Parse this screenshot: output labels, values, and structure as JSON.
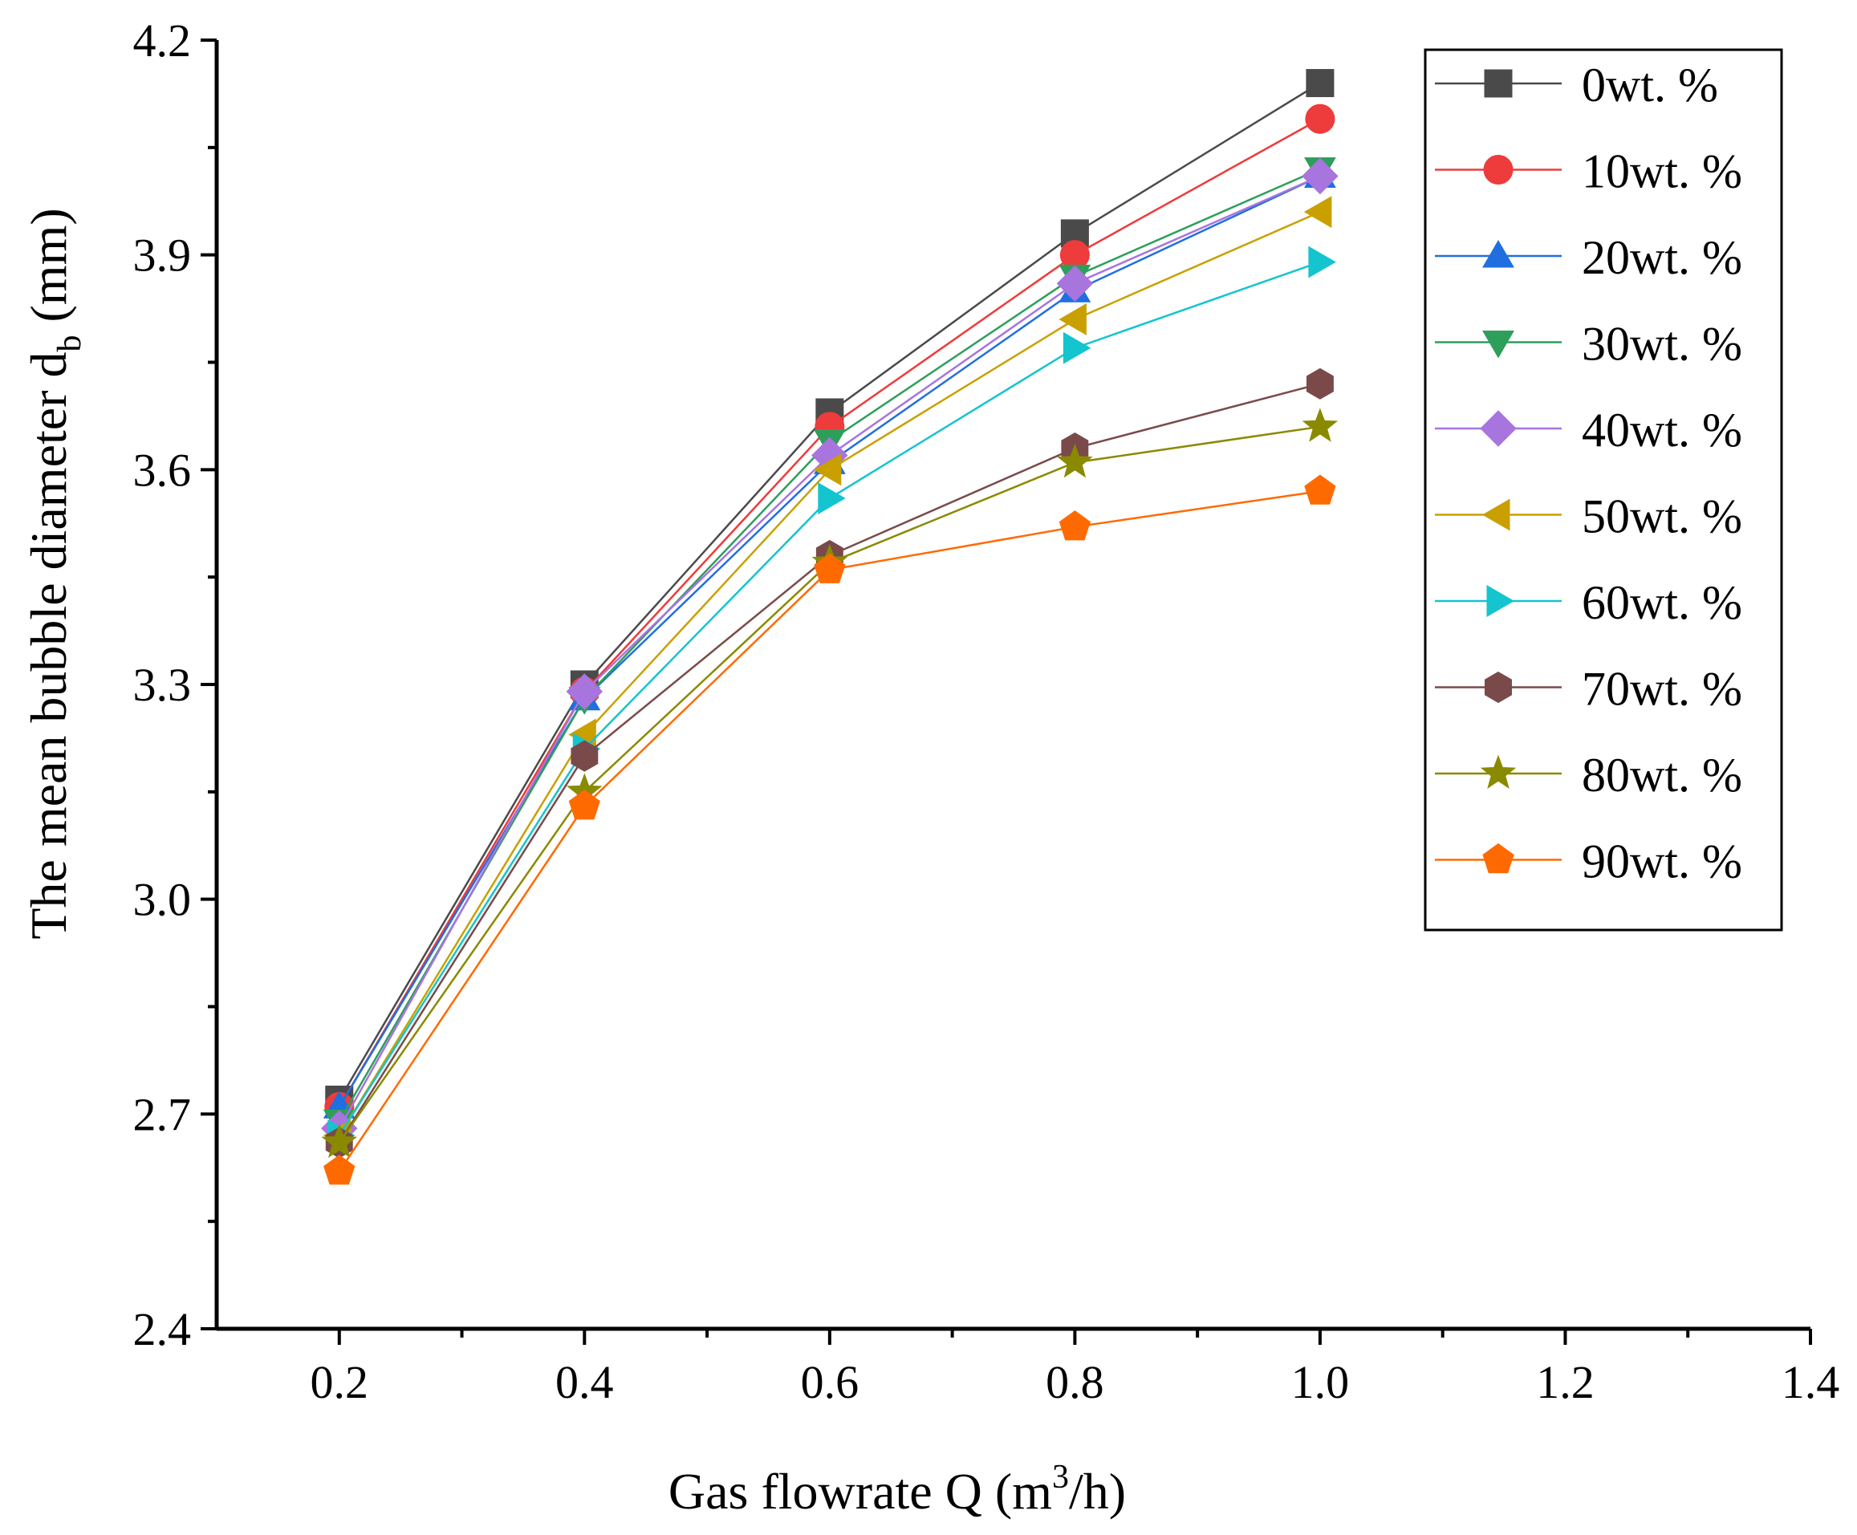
{
  "chart_data": {
    "type": "line",
    "title": "",
    "xlabel": "Gas flowrate Q (m",
    "xlabel_sup": "3",
    "xlabel_tail": "/h)",
    "ylabel": "The mean bubble diameter d",
    "ylabel_sub": "b",
    "ylabel_tail": " (mm)",
    "xlim": [
      0.1,
      1.4
    ],
    "ylim": [
      2.4,
      4.2
    ],
    "xticks": [
      {
        "value": 0.2,
        "label": "0.2"
      },
      {
        "value": 0.4,
        "label": "0.4"
      },
      {
        "value": 0.6,
        "label": "0.6"
      },
      {
        "value": 0.8,
        "label": "0.8"
      },
      {
        "value": 1.0,
        "label": "1.0"
      },
      {
        "value": 1.2,
        "label": "1.2"
      },
      {
        "value": 1.4,
        "label": "1.4"
      }
    ],
    "yticks": [
      {
        "value": 2.4,
        "label": "2.4"
      },
      {
        "value": 2.7,
        "label": "2.7"
      },
      {
        "value": 3.0,
        "label": "3.0"
      },
      {
        "value": 3.3,
        "label": "3.3"
      },
      {
        "value": 3.6,
        "label": "3.6"
      },
      {
        "value": 3.9,
        "label": "3.9"
      },
      {
        "value": 4.2,
        "label": "4.2"
      }
    ],
    "grid": false,
    "legend": "top-right",
    "x": [
      0.2,
      0.4,
      0.6,
      0.8,
      1.0
    ],
    "series": [
      {
        "name": "0wt. %",
        "color": "#4a4a4a",
        "marker": "square",
        "values": [
          2.72,
          3.3,
          3.68,
          3.93,
          4.14
        ]
      },
      {
        "name": "10wt. %",
        "color": "#ee3b3b",
        "marker": "circle",
        "values": [
          2.71,
          3.29,
          3.66,
          3.9,
          4.09
        ]
      },
      {
        "name": "20wt. %",
        "color": "#1f6fe0",
        "marker": "triangle-up",
        "values": [
          2.71,
          3.28,
          3.61,
          3.85,
          4.01
        ]
      },
      {
        "name": "30wt. %",
        "color": "#2e9e5b",
        "marker": "triangle-down",
        "values": [
          2.69,
          3.28,
          3.64,
          3.87,
          4.02
        ]
      },
      {
        "name": "40wt. %",
        "color": "#a874de",
        "marker": "diamond",
        "values": [
          2.68,
          3.29,
          3.62,
          3.86,
          4.01
        ]
      },
      {
        "name": "50wt. %",
        "color": "#c9a000",
        "marker": "triangle-left",
        "values": [
          2.67,
          3.23,
          3.6,
          3.81,
          3.96
        ]
      },
      {
        "name": "60wt. %",
        "color": "#14c4cf",
        "marker": "triangle-right",
        "values": [
          2.67,
          3.21,
          3.56,
          3.77,
          3.89
        ]
      },
      {
        "name": "70wt. %",
        "color": "#7a4a4a",
        "marker": "hexagon",
        "values": [
          2.66,
          3.2,
          3.48,
          3.63,
          3.72
        ]
      },
      {
        "name": "80wt. %",
        "color": "#8a8a00",
        "marker": "star",
        "values": [
          2.66,
          3.15,
          3.47,
          3.61,
          3.66
        ]
      },
      {
        "name": "90wt. %",
        "color": "#ff6a00",
        "marker": "pentagon",
        "values": [
          2.62,
          3.13,
          3.46,
          3.52,
          3.57
        ]
      }
    ]
  }
}
